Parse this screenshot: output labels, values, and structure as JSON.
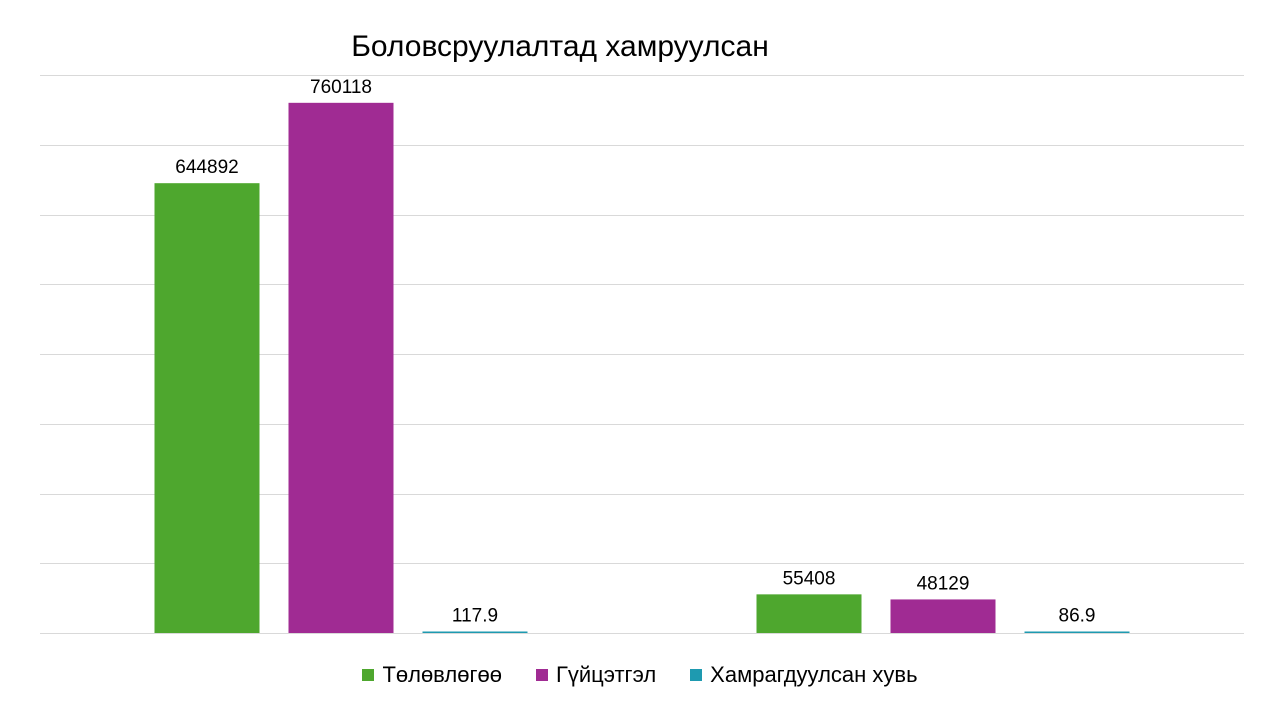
{
  "chart_data": {
    "type": "bar",
    "title": "Боловсруулалтад хамруулсан",
    "categories": [
      "",
      ""
    ],
    "series": [
      {
        "name": "Төлөвлөгөө",
        "values": [
          644892,
          55408
        ],
        "labels": [
          "644892",
          "55408"
        ],
        "color": "#4ea72e"
      },
      {
        "name": "Гүйцэтгэл",
        "values": [
          760118,
          48129
        ],
        "labels": [
          "760118",
          "48129"
        ],
        "color": "#a02b93"
      },
      {
        "name": "Хамрагдуулсан хувь",
        "values": [
          117.9,
          86.9
        ],
        "labels": [
          "117.9",
          "86.9"
        ],
        "color": "#1e9ab0"
      }
    ],
    "ylim": [
      0,
      800000
    ],
    "grid": true,
    "legend_position": "bottom",
    "xlabel": "",
    "ylabel": ""
  }
}
